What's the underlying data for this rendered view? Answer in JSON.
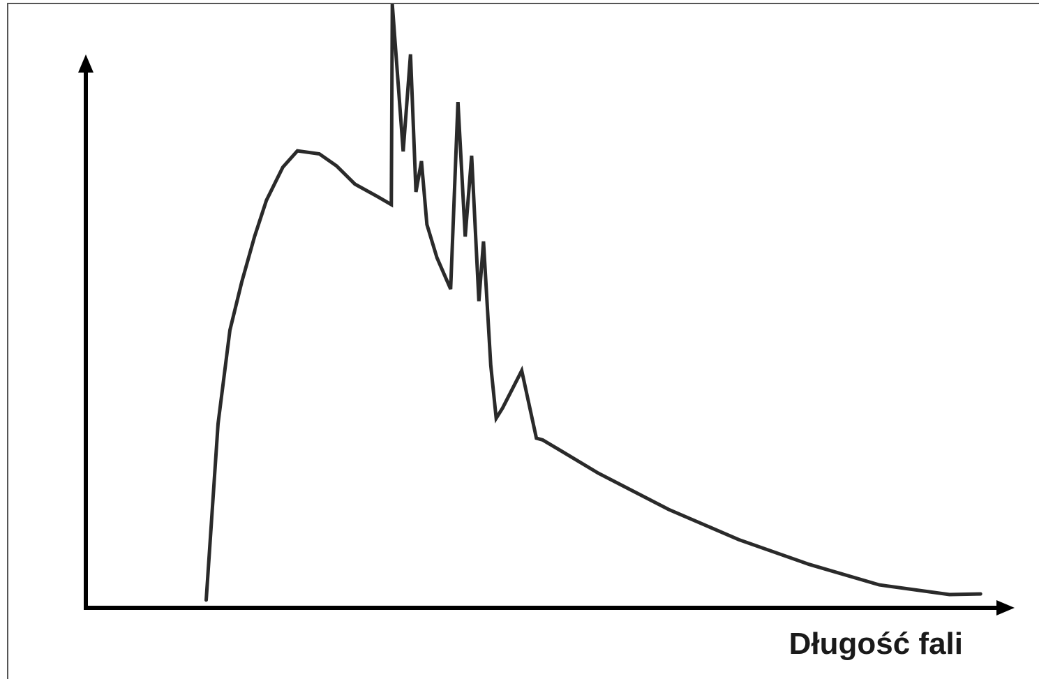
{
  "chart_data": {
    "type": "line",
    "title": "",
    "xlabel": "Długość fali",
    "ylabel": "",
    "xlim": [
      0,
      100
    ],
    "ylim": [
      0,
      100
    ],
    "grid": false,
    "ticks": false,
    "colors": {
      "line": "#2a2a2a",
      "axis": "#000000"
    },
    "series": [
      {
        "x": [
          13.2,
          14.5,
          15.8,
          17.1,
          18.5,
          19.8,
          21.6,
          23.2,
          25.6,
          27.5,
          29.5,
          31.9,
          33.5,
          33.6,
          34.8,
          35.6,
          36.2,
          36.8,
          37.4,
          38.5,
          40.0,
          40.8,
          41.6,
          42.3,
          43.1,
          43.6,
          44.4,
          45.0,
          45.7,
          47.8,
          49.4,
          50.1,
          52.0,
          56.2,
          63.9,
          71.6,
          79.3,
          87.0,
          94.7,
          98.1
        ],
        "y": [
          1.3,
          30.5,
          46.0,
          54.0,
          61.5,
          67.5,
          73.0,
          75.7,
          75.2,
          73.2,
          70.2,
          68.2,
          66.8,
          100.0,
          75.6,
          91.7,
          68.9,
          74.0,
          63.5,
          58.0,
          52.8,
          83.8,
          61.5,
          74.9,
          50.8,
          60.7,
          40.2,
          31.4,
          33.1,
          39.3,
          28.1,
          27.8,
          26.1,
          22.3,
          16.3,
          11.3,
          7.2,
          3.8,
          2.2,
          2.3
        ]
      }
    ]
  }
}
